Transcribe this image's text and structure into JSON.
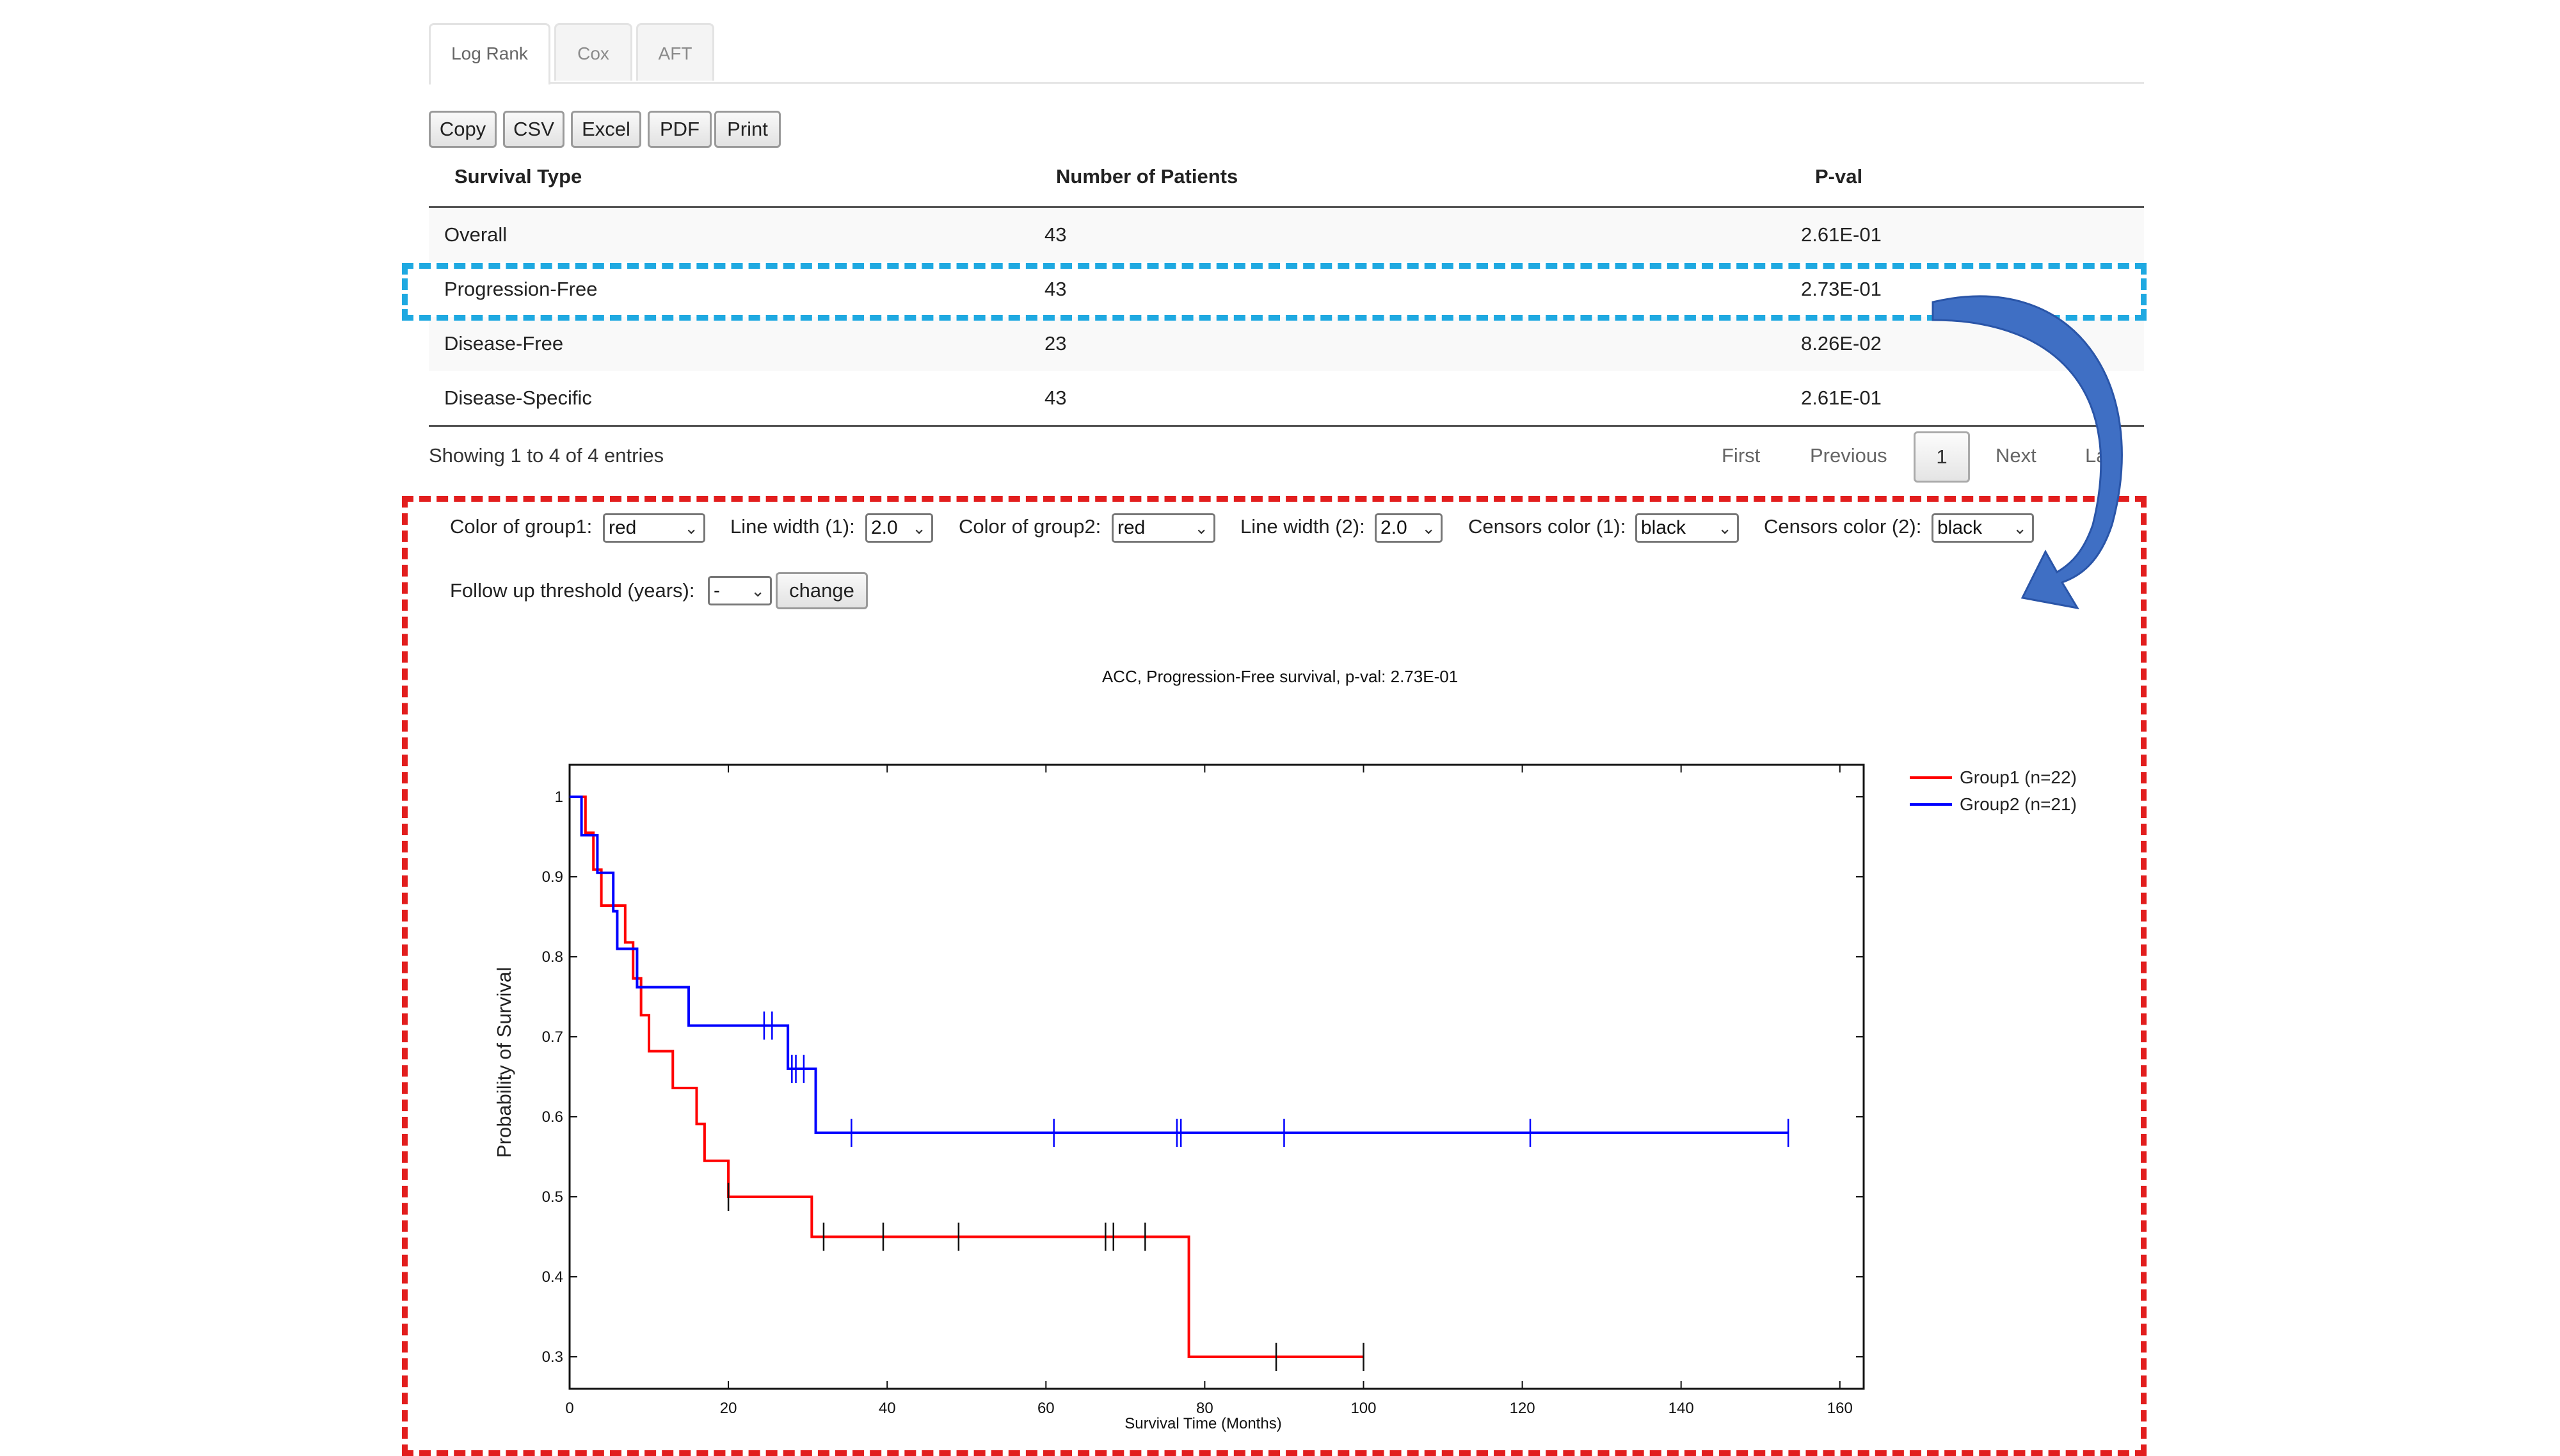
{
  "tabs": [
    "Log Rank",
    "Cox",
    "AFT"
  ],
  "export_buttons": [
    "Copy",
    "CSV",
    "Excel",
    "PDF",
    "Print"
  ],
  "table": {
    "headers": [
      "Survival Type",
      "Number of Patients",
      "P-val"
    ],
    "rows": [
      [
        "Overall",
        "43",
        "2.61E-01"
      ],
      [
        "Progression-Free",
        "43",
        "2.73E-01"
      ],
      [
        "Disease-Free",
        "23",
        "8.26E-02"
      ],
      [
        "Disease-Specific",
        "43",
        "2.61E-01"
      ]
    ]
  },
  "info_text": "Showing 1 to 4 of 4 entries",
  "pagination": {
    "first": "First",
    "previous": "Previous",
    "current": "1",
    "next": "Next",
    "last": "Last"
  },
  "controls": {
    "color_group1_label": "Color of group1:",
    "color_group1_value": "red",
    "line_width1_label": "Line width (1):",
    "line_width1_value": "2.0",
    "color_group2_label": "Color of group2:",
    "color_group2_value": "red",
    "line_width2_label": "Line width (2):",
    "line_width2_value": "2.0",
    "censors_color1_label": "Censors color (1):",
    "censors_color1_value": "black",
    "censors_color2_label": "Censors color (2):",
    "censors_color2_value": "black",
    "followup_label": "Follow up threshold (years):",
    "followup_value": "-",
    "change_label": "change"
  },
  "colors": {
    "highlight_blue": "#1fa9e1",
    "highlight_red": "#e21e1e",
    "arrow": "#3f6fc4",
    "group1": "#ff0000",
    "group2": "#0000ff"
  },
  "chart_data": {
    "type": "line",
    "title": "ACC, Progression-Free survival, p-val: 2.73E-01",
    "xlabel": "Survival Time (Months)",
    "ylabel": "Probability of Survival",
    "xlim": [
      0,
      163
    ],
    "ylim": [
      0.26,
      1.04
    ],
    "xticks": [
      0,
      20,
      40,
      60,
      80,
      100,
      120,
      140,
      160
    ],
    "yticks": [
      0.3,
      0.4,
      0.5,
      0.6,
      0.7,
      0.8,
      0.9,
      1
    ],
    "ytick_labels": [
      "0.3",
      "0.4",
      "0.5",
      "0.6",
      "0.7",
      "0.8",
      "0.9",
      "1"
    ],
    "legend_position": "top-right",
    "series": [
      {
        "name": "Group1 (n=22)",
        "color": "#ff0000",
        "steps": [
          [
            0,
            1
          ],
          [
            2,
            0.955
          ],
          [
            3,
            0.909
          ],
          [
            4,
            0.864
          ],
          [
            7,
            0.818
          ],
          [
            8,
            0.773
          ],
          [
            9,
            0.727
          ],
          [
            10,
            0.682
          ],
          [
            13,
            0.636
          ],
          [
            16,
            0.591
          ],
          [
            17,
            0.545
          ],
          [
            20,
            0.5
          ],
          [
            30.5,
            0.45
          ],
          [
            78,
            0.3
          ],
          [
            100,
            0.3
          ]
        ],
        "censors": [
          [
            20,
            0.5
          ],
          [
            32,
            0.45
          ],
          [
            39.5,
            0.45
          ],
          [
            49,
            0.45
          ],
          [
            67.5,
            0.45
          ],
          [
            68.5,
            0.45
          ],
          [
            72.5,
            0.45
          ],
          [
            89,
            0.3
          ],
          [
            100,
            0.3
          ]
        ]
      },
      {
        "name": "Group2 (n=21)",
        "color": "#0000ff",
        "steps": [
          [
            0,
            1
          ],
          [
            1.5,
            0.952
          ],
          [
            3.5,
            0.905
          ],
          [
            5.5,
            0.857
          ],
          [
            6,
            0.81
          ],
          [
            8.5,
            0.762
          ],
          [
            15,
            0.714
          ],
          [
            27.5,
            0.66
          ],
          [
            31,
            0.58
          ],
          [
            153.5,
            0.58
          ]
        ],
        "censors": [
          [
            24.5,
            0.714
          ],
          [
            25.5,
            0.714
          ],
          [
            28,
            0.66
          ],
          [
            28.5,
            0.66
          ],
          [
            29.5,
            0.66
          ],
          [
            35.5,
            0.58
          ],
          [
            61,
            0.58
          ],
          [
            76.5,
            0.58
          ],
          [
            77,
            0.58
          ],
          [
            90,
            0.58
          ],
          [
            121,
            0.58
          ],
          [
            153.5,
            0.58
          ]
        ]
      }
    ]
  }
}
